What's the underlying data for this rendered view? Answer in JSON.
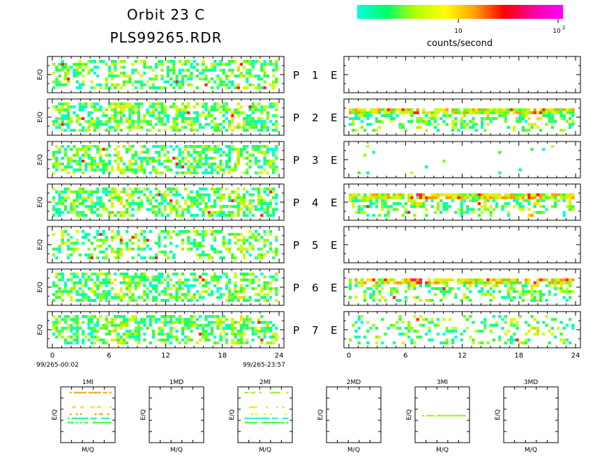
{
  "header": {
    "title_line1": "Orbit 23 C",
    "title_line2": "PLS99265.RDR"
  },
  "colorbar": {
    "label": "counts/second",
    "tick_10": "10",
    "tick_100_base": "10",
    "tick_100_exp": "2",
    "colors": [
      "#00ffe0",
      "#00ff66",
      "#b8ff00",
      "#ffff00",
      "#ffa000",
      "#ff0000",
      "#ff00a0",
      "#ff00ff"
    ]
  },
  "axes": {
    "ylabel": "E/Q",
    "xlabel_small": "M/Q",
    "time_ticks": [
      "0",
      "6",
      "12",
      "18",
      "24"
    ],
    "start_time": "99/265-00:02",
    "end_time": "99/265-23:57"
  },
  "chart_data": {
    "type": "heatmap",
    "x_range": [
      0,
      24
    ],
    "x_units": "hours",
    "color_scale": "log counts/second",
    "rows": [
      {
        "p_label": "P",
        "num": "1",
        "e_label": "E",
        "p_level": 0.45,
        "e_level": 0.0
      },
      {
        "p_label": "P",
        "num": "2",
        "e_label": "E",
        "p_level": 0.55,
        "e_level": 0.6
      },
      {
        "p_label": "P",
        "num": "3",
        "e_label": "E",
        "p_level": 0.5,
        "e_level": 0.02
      },
      {
        "p_label": "P",
        "num": "4",
        "e_label": "E",
        "p_level": 0.55,
        "e_level": 0.65
      },
      {
        "p_label": "P",
        "num": "5",
        "e_label": "E",
        "p_level": 0.35,
        "e_level": 0.0
      },
      {
        "p_label": "P",
        "num": "6",
        "e_label": "E",
        "p_level": 0.5,
        "e_level": 0.6
      },
      {
        "p_label": "P",
        "num": "7",
        "e_label": "E",
        "p_level": 0.5,
        "e_level": 0.2
      }
    ],
    "mass_panels": [
      {
        "label": "1MI",
        "has_data": true
      },
      {
        "label": "1MD",
        "has_data": false
      },
      {
        "label": "2MI",
        "has_data": true
      },
      {
        "label": "2MD",
        "has_data": false
      },
      {
        "label": "3MI",
        "has_data": true
      },
      {
        "label": "3MD",
        "has_data": false
      }
    ]
  }
}
